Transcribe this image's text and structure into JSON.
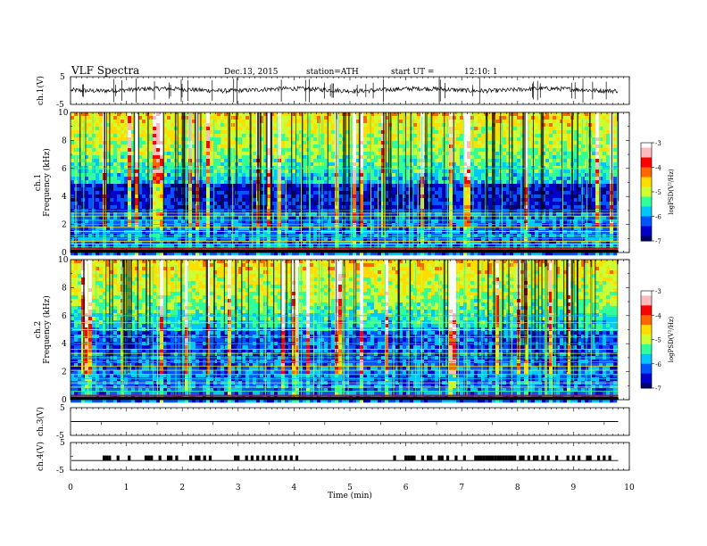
{
  "header": {
    "title": "VLF Spectra",
    "date": "Dec.13, 2015",
    "station": "station=ATH",
    "start_label": "start UT =",
    "start_time": "12:10: 1"
  },
  "colors": {
    "axes": "#000000",
    "colormap": [
      "#000066",
      "#0000cc",
      "#0055ff",
      "#00c8ff",
      "#33ff99",
      "#ccff33",
      "#ffdd00",
      "#ff6600",
      "#ff0000",
      "#ffbbbb",
      "#ffffff"
    ]
  },
  "chart_data": [
    {
      "id": "ch1-waveform",
      "type": "line",
      "ylabel": "ch.1(V)",
      "yticks": [
        "5",
        "-5"
      ],
      "ylim": [
        -5,
        5
      ],
      "xlim": [
        0,
        10
      ],
      "series": [
        {
          "description_level": 0.3,
          "noise_amplitude": 0.6,
          "spikes": "frequent"
        }
      ]
    },
    {
      "id": "ch1-spectrogram",
      "type": "heatmap",
      "ylabel": "ch.1\nFrequency (kHz)",
      "ylabel_lines": [
        "ch.1",
        "Frequency (kHz)"
      ],
      "yticks": [
        "0",
        "2",
        "4",
        "6",
        "8",
        "10"
      ],
      "ylim": [
        0,
        10
      ],
      "xlim": [
        0,
        10
      ],
      "colorbar": {
        "label": "logPSD(V²/Hz)",
        "ticks": [
          "-3",
          "-4",
          "-5",
          "-6",
          "-7"
        ],
        "range": [
          -7,
          -3
        ]
      },
      "data_end_min": 9.8,
      "horizontal_lines_khz": [
        0.2,
        0.4,
        0.6,
        0.8,
        1.0,
        1.2,
        1.5,
        1.8,
        2.0,
        2.3,
        2.6,
        2.8,
        3.0,
        6.0
      ]
    },
    {
      "id": "ch2-spectrogram",
      "type": "heatmap",
      "ylabel": "ch.2\nFrequency (kHz)",
      "ylabel_lines": [
        "ch.2",
        "Frequency (kHz)"
      ],
      "yticks": [
        "0",
        "2",
        "4",
        "6",
        "8",
        "10"
      ],
      "ylim": [
        0,
        10
      ],
      "xlim": [
        0,
        10
      ],
      "colorbar": {
        "label": "logPSD(V²/Hz)",
        "ticks": [
          "-3",
          "-4",
          "-5",
          "-6",
          "-7"
        ],
        "range": [
          -7,
          -3
        ]
      },
      "data_end_min": 9.8,
      "horizontal_lines_khz": [
        0.3,
        0.6,
        0.9,
        1.2,
        1.5,
        1.8,
        2.1,
        2.4,
        2.7,
        3.0,
        3.3,
        3.6,
        4.0,
        4.5,
        5.0,
        5.5,
        6.0
      ]
    },
    {
      "id": "ch3-waveform",
      "type": "line",
      "ylabel": "ch.3(V)",
      "yticks": [
        "5",
        "-5"
      ],
      "ylim": [
        -5,
        5
      ],
      "xlim": [
        0,
        10
      ],
      "series": [
        {
          "level": 0
        }
      ]
    },
    {
      "id": "ch4-waveform",
      "type": "line",
      "ylabel": "ch.4(V)",
      "yticks": [
        "5",
        "-5"
      ],
      "ylim": [
        -5,
        5
      ],
      "xlim": [
        0,
        10
      ],
      "series": [
        {
          "level": -1.5,
          "pulses_min": [
            0.6,
            0.65,
            0.7,
            0.85,
            1.05,
            1.35,
            1.4,
            1.45,
            1.6,
            1.75,
            1.8,
            1.9,
            2.15,
            2.25,
            2.3,
            2.4,
            2.5,
            2.95,
            3.0,
            3.15,
            3.25,
            3.35,
            3.45,
            3.55,
            3.65,
            3.75,
            3.85,
            3.95,
            4.05,
            5.8,
            6.0,
            6.05,
            6.1,
            6.15,
            6.3,
            6.4,
            6.45,
            6.6,
            6.65,
            6.75,
            6.9,
            7.05,
            7.25,
            7.3,
            7.35,
            7.4,
            7.45,
            7.5,
            7.55,
            7.6,
            7.65,
            7.7,
            7.75,
            7.8,
            7.85,
            7.9,
            7.95,
            8.05,
            8.1,
            8.2,
            8.3,
            8.35,
            8.45,
            8.55,
            8.7,
            8.9,
            9.0,
            9.1,
            9.25,
            9.3,
            9.45,
            9.55,
            9.65
          ]
        }
      ]
    }
  ],
  "xaxis": {
    "label": "Time (min)",
    "ticks": [
      "0",
      "1",
      "2",
      "3",
      "4",
      "5",
      "6",
      "7",
      "8",
      "9",
      "10"
    ],
    "xlim": [
      0,
      10
    ]
  }
}
